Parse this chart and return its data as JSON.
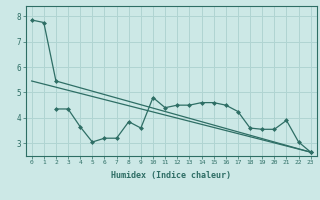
{
  "xlabel": "Humidex (Indice chaleur)",
  "bg_color": "#cce8e6",
  "grid_color": "#b0d4d2",
  "line_color": "#2e6e65",
  "xlim": [
    -0.5,
    23.5
  ],
  "ylim": [
    2.5,
    8.4
  ],
  "yticks": [
    3,
    4,
    5,
    6,
    7,
    8
  ],
  "xticks": [
    0,
    1,
    2,
    3,
    4,
    5,
    6,
    7,
    8,
    9,
    10,
    11,
    12,
    13,
    14,
    15,
    16,
    17,
    18,
    19,
    20,
    21,
    22,
    23
  ],
  "line1_x": [
    0,
    1,
    2,
    23
  ],
  "line1_y": [
    7.85,
    7.75,
    5.45,
    2.65
  ],
  "line2_x": [
    2,
    3,
    4,
    5,
    6,
    7,
    8,
    9,
    10,
    11,
    12,
    13,
    14,
    15,
    16,
    17,
    18,
    19,
    20,
    21,
    22,
    23
  ],
  "line2_y": [
    4.35,
    4.35,
    3.65,
    3.05,
    3.2,
    3.2,
    3.85,
    3.6,
    4.8,
    4.4,
    4.5,
    4.5,
    4.6,
    4.6,
    4.5,
    4.25,
    3.6,
    3.55,
    3.55,
    3.9,
    3.05,
    2.65
  ],
  "line3_x": [
    0,
    23
  ],
  "line3_y": [
    5.45,
    2.65
  ],
  "marker_line2_x": [
    2,
    3,
    4,
    5,
    6,
    7,
    8,
    9,
    10,
    11,
    12,
    13,
    14,
    15,
    16,
    17,
    18,
    19,
    20,
    21,
    22,
    23
  ],
  "marker_line1_x": [
    0,
    1,
    2
  ],
  "marker_line1_y": [
    7.85,
    7.75,
    5.45
  ]
}
